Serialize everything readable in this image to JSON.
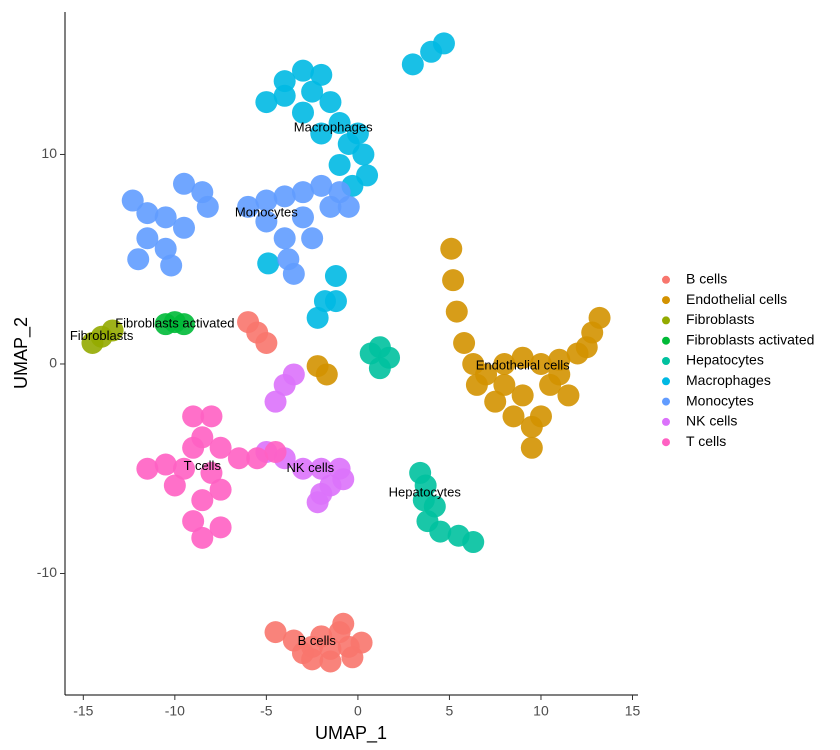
{
  "chart_data": {
    "type": "scatter",
    "x_label": "UMAP_1",
    "y_label": "UMAP_2",
    "xlim": [
      -16,
      15.3
    ],
    "ylim": [
      -15.8,
      16.8
    ],
    "xticks": [
      -15,
      -10,
      -5,
      0,
      5,
      10,
      15
    ],
    "yticks": [
      -10,
      0,
      10
    ],
    "legend": "right",
    "cluster_labels": true,
    "series": [
      {
        "name": "B cells",
        "color": "#F8766D",
        "x": [
          -4.5,
          -3.5,
          -2.5,
          -1.5,
          -0.5,
          0.2,
          -1,
          -2,
          -3,
          -1.5,
          -0.8,
          -2.5,
          -0.3,
          -6,
          -5.5,
          -5
        ],
        "y": [
          -12.8,
          -13.2,
          -13.5,
          -13.6,
          -13.5,
          -13.3,
          -12.8,
          -13,
          -13.8,
          -14.2,
          -12.4,
          -14.1,
          -14,
          2,
          1.5,
          1
        ]
      },
      {
        "name": "Endothelial cells",
        "color": "#D39200",
        "x": [
          5.1,
          5.2,
          5.4,
          5.8,
          6.3,
          7,
          8,
          9,
          9.5,
          9.5,
          10,
          10.5,
          11,
          12,
          12.8,
          13.2,
          11.5,
          8.5,
          7.5,
          6.5,
          10,
          8,
          9,
          11,
          12.5,
          -2.2,
          -1.7
        ],
        "y": [
          5.5,
          4,
          2.5,
          1,
          0,
          -0.5,
          -1,
          -1.5,
          -3,
          -4,
          -2.5,
          -1,
          -0.5,
          0.5,
          1.5,
          2.2,
          -1.5,
          -2.5,
          -1.8,
          -1,
          0,
          0,
          0.3,
          0.2,
          0.8,
          -0.1,
          -0.5
        ]
      },
      {
        "name": "Fibroblasts",
        "color": "#93AA00",
        "x": [
          -14.5,
          -14,
          -13.4
        ],
        "y": [
          1,
          1.3,
          1.6
        ]
      },
      {
        "name": "Fibroblasts activated",
        "color": "#00BA38",
        "x": [
          -10.5,
          -10,
          -9.5
        ],
        "y": [
          1.9,
          2,
          1.9
        ]
      },
      {
        "name": "Hepatocytes",
        "color": "#00C19F",
        "x": [
          0.7,
          1.2,
          1.7,
          1.2,
          3.4,
          3.6,
          3.8,
          4.5,
          5.5,
          6.3,
          4.2,
          3.7
        ],
        "y": [
          0.5,
          0.8,
          0.3,
          -0.2,
          -5.2,
          -6.5,
          -7.5,
          -8,
          -8.2,
          -8.5,
          -6.8,
          -5.8
        ]
      },
      {
        "name": "Macrophages",
        "color": "#00B9E3",
        "x": [
          -5,
          -4,
          -3,
          -2,
          -1.5,
          -1,
          -0.5,
          0.3,
          0.5,
          -0.3,
          -1,
          -2,
          -3,
          -4,
          -2.5,
          0,
          3,
          4,
          4.7,
          -2.2,
          -1.8,
          -1.2,
          -1.2,
          -4.9
        ],
        "y": [
          12.5,
          13.5,
          14,
          13.8,
          12.5,
          11.5,
          10.5,
          10,
          9,
          8.5,
          9.5,
          11,
          12,
          12.8,
          13,
          11,
          14.3,
          14.9,
          15.3,
          2.2,
          3,
          4.2,
          3,
          4.8
        ]
      },
      {
        "name": "Monocytes",
        "color": "#619CFF",
        "x": [
          -6,
          -5,
          -4,
          -3,
          -2,
          -1,
          -1.5,
          -3,
          -4,
          -3.8,
          -3.5,
          -5,
          -2.5,
          -0.5,
          -12.3,
          -11.5,
          -10.5,
          -9.5,
          -8.5,
          -8.2,
          -9.5,
          -10.5,
          -12,
          -11.5,
          -10.2
        ],
        "y": [
          7.5,
          7.8,
          8,
          8.2,
          8.5,
          8.2,
          7.5,
          7,
          6,
          5,
          4.3,
          6.8,
          6,
          7.5,
          7.8,
          7.2,
          7,
          8.6,
          8.2,
          7.5,
          6.5,
          5.5,
          5,
          6,
          4.7
        ]
      },
      {
        "name": "NK cells",
        "color": "#DB72FB",
        "x": [
          -5,
          -4,
          -3,
          -2,
          -1,
          -0.8,
          -1.5,
          -2,
          -2.2,
          -3.5,
          -4,
          -4.5
        ],
        "y": [
          -4.2,
          -4.5,
          -5,
          -5,
          -5,
          -5.5,
          -5.8,
          -6.2,
          -6.6,
          -0.5,
          -1,
          -1.8
        ]
      },
      {
        "name": "T cells",
        "color": "#FF61C3",
        "x": [
          -11.5,
          -10.5,
          -9.5,
          -8.5,
          -8,
          -9,
          -7.5,
          -6.5,
          -5.5,
          -4.5,
          -8.5,
          -9,
          -8.5,
          -7.5,
          -7.5,
          -10,
          -9,
          -8
        ],
        "y": [
          -5,
          -4.8,
          -5,
          -3.5,
          -2.5,
          -2.5,
          -4,
          -4.5,
          -4.5,
          -4.2,
          -6.5,
          -7.5,
          -8.3,
          -7.8,
          -6,
          -5.8,
          -4,
          -5.2
        ]
      }
    ]
  }
}
